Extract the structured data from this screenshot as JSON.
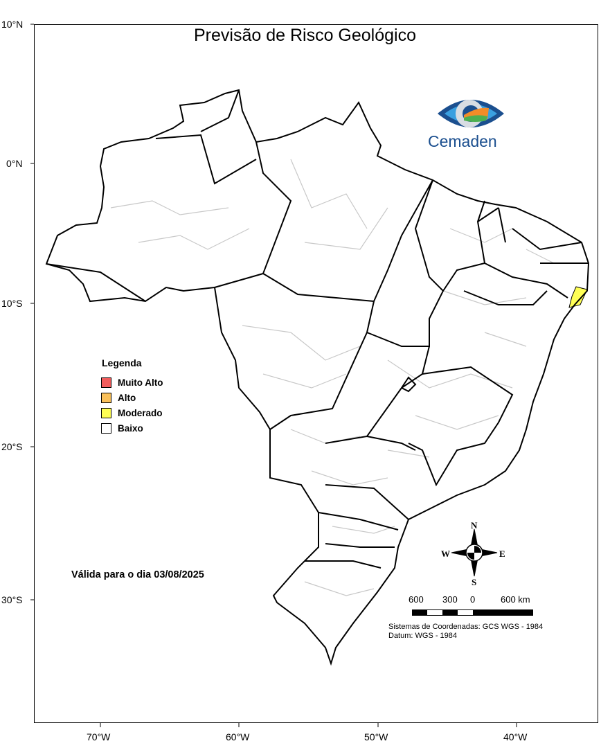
{
  "title": "Previsão de Risco Geológico",
  "logo": {
    "text": "Cemaden",
    "colors": [
      "#1b4f8f",
      "#3aa0e0",
      "#f28c28",
      "#4caf50"
    ]
  },
  "axes": {
    "lat_ticks": [
      "10°N",
      "0°N",
      "10°S",
      "20°S",
      "30°S"
    ],
    "lon_ticks": [
      "70°W",
      "60°W",
      "50°W",
      "40°W"
    ]
  },
  "legend": {
    "title": "Legenda",
    "items": [
      {
        "label": "Muito Alto",
        "color": "#f25c5c"
      },
      {
        "label": "Alto",
        "color": "#f9c05a"
      },
      {
        "label": "Moderado",
        "color": "#ffff55"
      },
      {
        "label": "Baixo",
        "color": "#ffffff"
      }
    ]
  },
  "valid_text": "Válida para o dia 03/08/2025",
  "compass": {
    "n": "N",
    "s": "S",
    "e": "E",
    "w": "W"
  },
  "scale": {
    "labels": [
      "600",
      "300",
      "0",
      "600 km"
    ]
  },
  "coord_system": "Sistemas de Coordenadas: GCS WGS - 1984",
  "datum": "Datum: WGS - 1984",
  "highlighted_areas": [
    {
      "risk": "Moderado",
      "region": "eastern coast near 10°S"
    }
  ]
}
